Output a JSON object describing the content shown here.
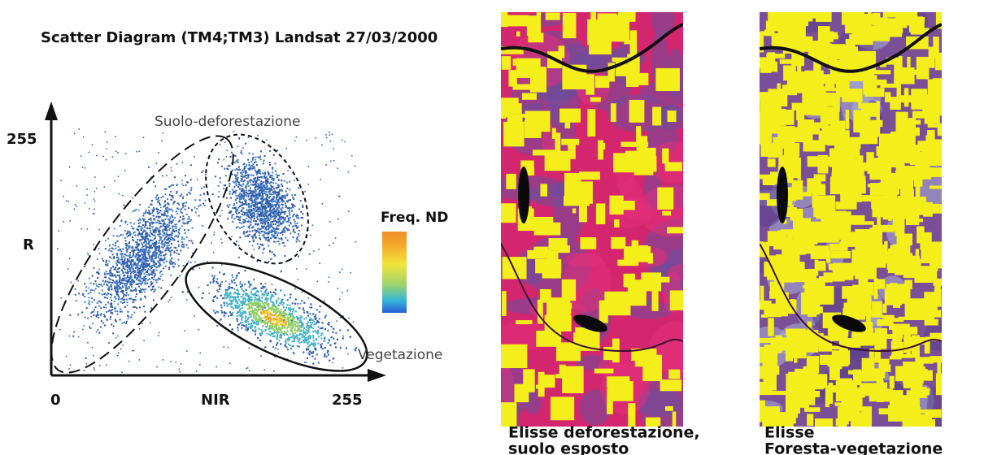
{
  "title": "Scatter Diagram (TM4;TM3) Landsat 27/03/2000",
  "scatter": {
    "y_axis_label": "R",
    "y_max_label": "255",
    "x_axis_label": "NIR",
    "x_min_label": "0",
    "x_max_label": "255",
    "ellipse_soil_label": "Suolo-deforestazione",
    "ellipse_vegetation_label": "Vegetazione",
    "colorbar_label": "Freq. ND"
  },
  "images": [
    {
      "caption_lines": [
        "Elisse deforestazione,",
        "suolo esposto"
      ]
    },
    {
      "caption_lines": [
        "Elisse",
        "Foresta-vegetazione"
      ]
    }
  ]
}
